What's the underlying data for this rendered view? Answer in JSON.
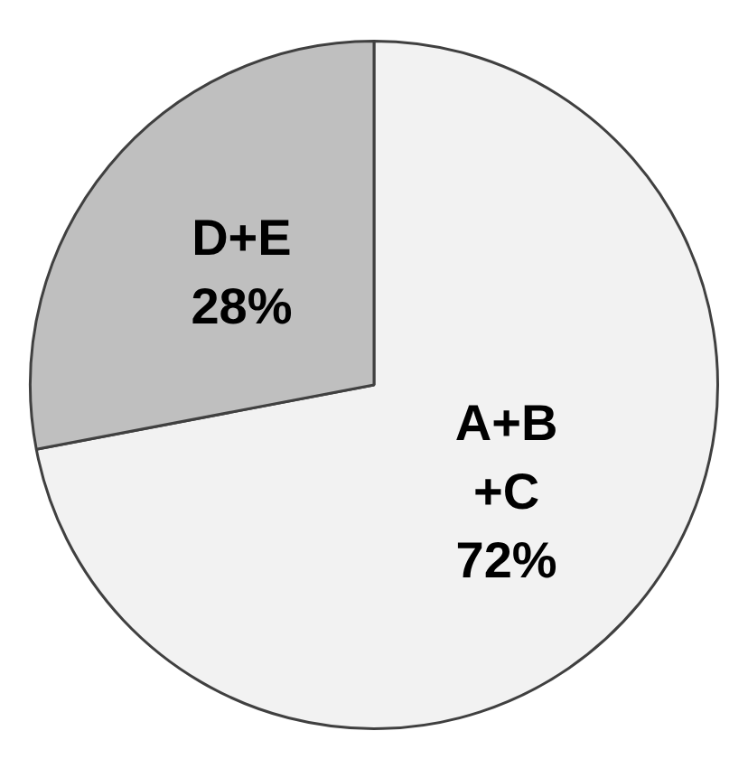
{
  "chart_data": {
    "type": "pie",
    "categories": [
      "A+B+C",
      "D+E"
    ],
    "values": [
      72,
      28
    ],
    "colors": [
      "#f2f2f2",
      "#bfbfbf"
    ],
    "value_labels": [
      "72%",
      "28%"
    ],
    "legend": false
  }
}
